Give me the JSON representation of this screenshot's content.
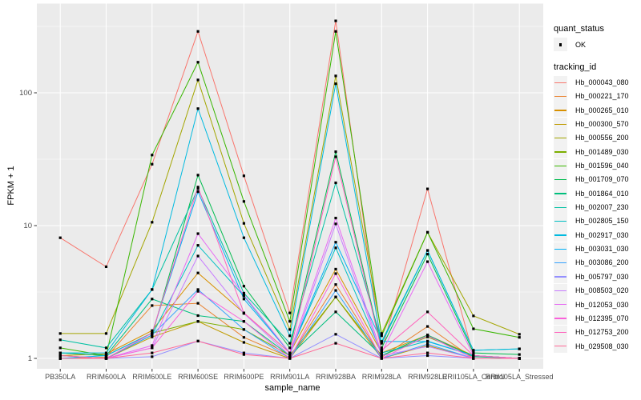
{
  "chart_data": {
    "type": "line",
    "title": "",
    "xlabel": "sample_name",
    "ylabel": "FPKM + 1",
    "yscale": "log10",
    "ytick_labels": [
      "1",
      "10",
      "100"
    ],
    "ytick_values": [
      1,
      10,
      100
    ],
    "ylim": [
      0.95,
      400
    ],
    "grid": "white major+minor gridlines on grey panel",
    "legend_position": "right",
    "point_symbol": "black-square",
    "point_color": "#000000",
    "categories": [
      "PB350LA",
      "RRIM600LA",
      "RRIM600LE",
      "RRIM600SE",
      "RRIM600PE",
      "RRIM901LA",
      "RRIM928BA",
      "RRIM928LA",
      "RRIM928LE",
      "RRII105LA_Control",
      "RRII105LA_Stressed"
    ],
    "series": [
      {
        "name": "Hb_000043_080",
        "color": "#F8766D",
        "values": [
          8.1,
          4.9,
          29,
          290,
          23.7,
          2.2,
          348,
          1.15,
          18.9,
          1.05,
          1.0
        ]
      },
      {
        "name": "Hb_000221_170",
        "color": "#EA8331",
        "values": [
          1.0,
          1.02,
          2.5,
          2.6,
          1.44,
          1.02,
          3.6,
          1.02,
          1.74,
          1.0,
          1.0
        ]
      },
      {
        "name": "Hb_000265_010",
        "color": "#D89000",
        "values": [
          1.05,
          1.08,
          1.62,
          4.4,
          2.2,
          1.1,
          4.7,
          1.1,
          1.5,
          1.05,
          1.0
        ]
      },
      {
        "name": "Hb_000300_570",
        "color": "#C09B00",
        "values": [
          1.0,
          1.0,
          1.45,
          1.9,
          1.32,
          1.0,
          2.9,
          1.0,
          1.25,
          1.0,
          1.0
        ]
      },
      {
        "name": "Hb_000556_200",
        "color": "#A3A500",
        "values": [
          1.54,
          1.54,
          10.6,
          125,
          10.4,
          1.65,
          134,
          1.54,
          8.9,
          2.09,
          1.52
        ]
      },
      {
        "name": "Hb_001489_030",
        "color": "#7CAE00",
        "values": [
          1.1,
          1.05,
          1.55,
          1.9,
          1.65,
          1.05,
          2.9,
          1.05,
          1.45,
          1.05,
          1.0
        ]
      },
      {
        "name": "Hb_001596_040",
        "color": "#39B600",
        "values": [
          1.2,
          1.05,
          34,
          170,
          15.2,
          1.9,
          290,
          1.48,
          8.9,
          1.67,
          1.44
        ]
      },
      {
        "name": "Hb_001709_070",
        "color": "#00BB4E",
        "values": [
          1.05,
          1.0,
          1.5,
          24,
          3.5,
          1.2,
          36,
          1.2,
          6.1,
          1.1,
          1.07
        ]
      },
      {
        "name": "Hb_001864_010",
        "color": "#00BF7D",
        "values": [
          1.1,
          1.05,
          2.8,
          2.1,
          1.9,
          1.05,
          2.24,
          1.05,
          1.5,
          1.03,
          1.0
        ]
      },
      {
        "name": "Hb_002007_230",
        "color": "#00C1A3",
        "values": [
          1.38,
          1.2,
          3.3,
          19,
          3.1,
          1.3,
          21,
          1.34,
          6.5,
          1.15,
          1.18
        ]
      },
      {
        "name": "Hb_002805_150",
        "color": "#00BFC4",
        "values": [
          1.0,
          1.0,
          1.5,
          7.1,
          2.95,
          1.1,
          6.8,
          1.1,
          1.35,
          1.05,
          1.0
        ]
      },
      {
        "name": "Hb_002917_030",
        "color": "#00BAE0",
        "values": [
          1.1,
          1.1,
          3.3,
          76,
          8.1,
          1.48,
          117,
          1.3,
          6.5,
          1.15,
          1.18
        ]
      },
      {
        "name": "Hb_003031_030",
        "color": "#00B0F6",
        "values": [
          1.0,
          1.05,
          1.55,
          18,
          2.8,
          1.1,
          7.5,
          1.34,
          1.34,
          1.05,
          1.0
        ]
      },
      {
        "name": "Hb_003086_200",
        "color": "#35A2FF",
        "values": [
          1.0,
          1.0,
          1.5,
          3.3,
          1.65,
          1.0,
          3.25,
          1.0,
          1.28,
          1.0,
          1.0
        ]
      },
      {
        "name": "Hb_005797_030",
        "color": "#9590FF",
        "values": [
          1.0,
          1.0,
          1.03,
          1.35,
          1.1,
          1.0,
          1.52,
          1.0,
          1.05,
          1.0,
          1.0
        ]
      },
      {
        "name": "Hb_008503_020",
        "color": "#C77CFF",
        "values": [
          1.0,
          1.0,
          1.2,
          5.9,
          2.18,
          1.05,
          10.3,
          1.05,
          1.23,
          1.0,
          1.0
        ]
      },
      {
        "name": "Hb_012053_030",
        "color": "#E76BF3",
        "values": [
          1.0,
          1.0,
          1.25,
          8.7,
          3.0,
          1.1,
          11.4,
          1.1,
          5.35,
          1.05,
          1.0
        ]
      },
      {
        "name": "Hb_012395_070",
        "color": "#FA62DB",
        "values": [
          1.0,
          1.0,
          1.2,
          3.2,
          1.9,
          1.0,
          4.35,
          1.0,
          1.48,
          1.0,
          1.0
        ]
      },
      {
        "name": "Hb_012753_200",
        "color": "#FF62BC",
        "values": [
          1.05,
          1.0,
          1.55,
          19.5,
          2.2,
          1.1,
          33,
          1.15,
          2.24,
          1.05,
          1.0
        ]
      },
      {
        "name": "Hb_029508_030",
        "color": "#FF6A98",
        "values": [
          1.0,
          1.0,
          1.1,
          1.35,
          1.07,
          1.0,
          1.3,
          1.0,
          1.1,
          1.0,
          1.0
        ]
      }
    ]
  },
  "legend": {
    "quant_title": "quant_status",
    "quant_items": [
      {
        "label": "OK"
      }
    ],
    "tracking_title": "tracking_id"
  },
  "theme": {
    "panel_bg": "#EBEBEB",
    "grid_color": "#FFFFFF",
    "tick_text": "#4D4D4D",
    "axis_title_color": "#000000",
    "legend_key_bg": "#F2F2F2",
    "background": "#FFFFFF"
  }
}
